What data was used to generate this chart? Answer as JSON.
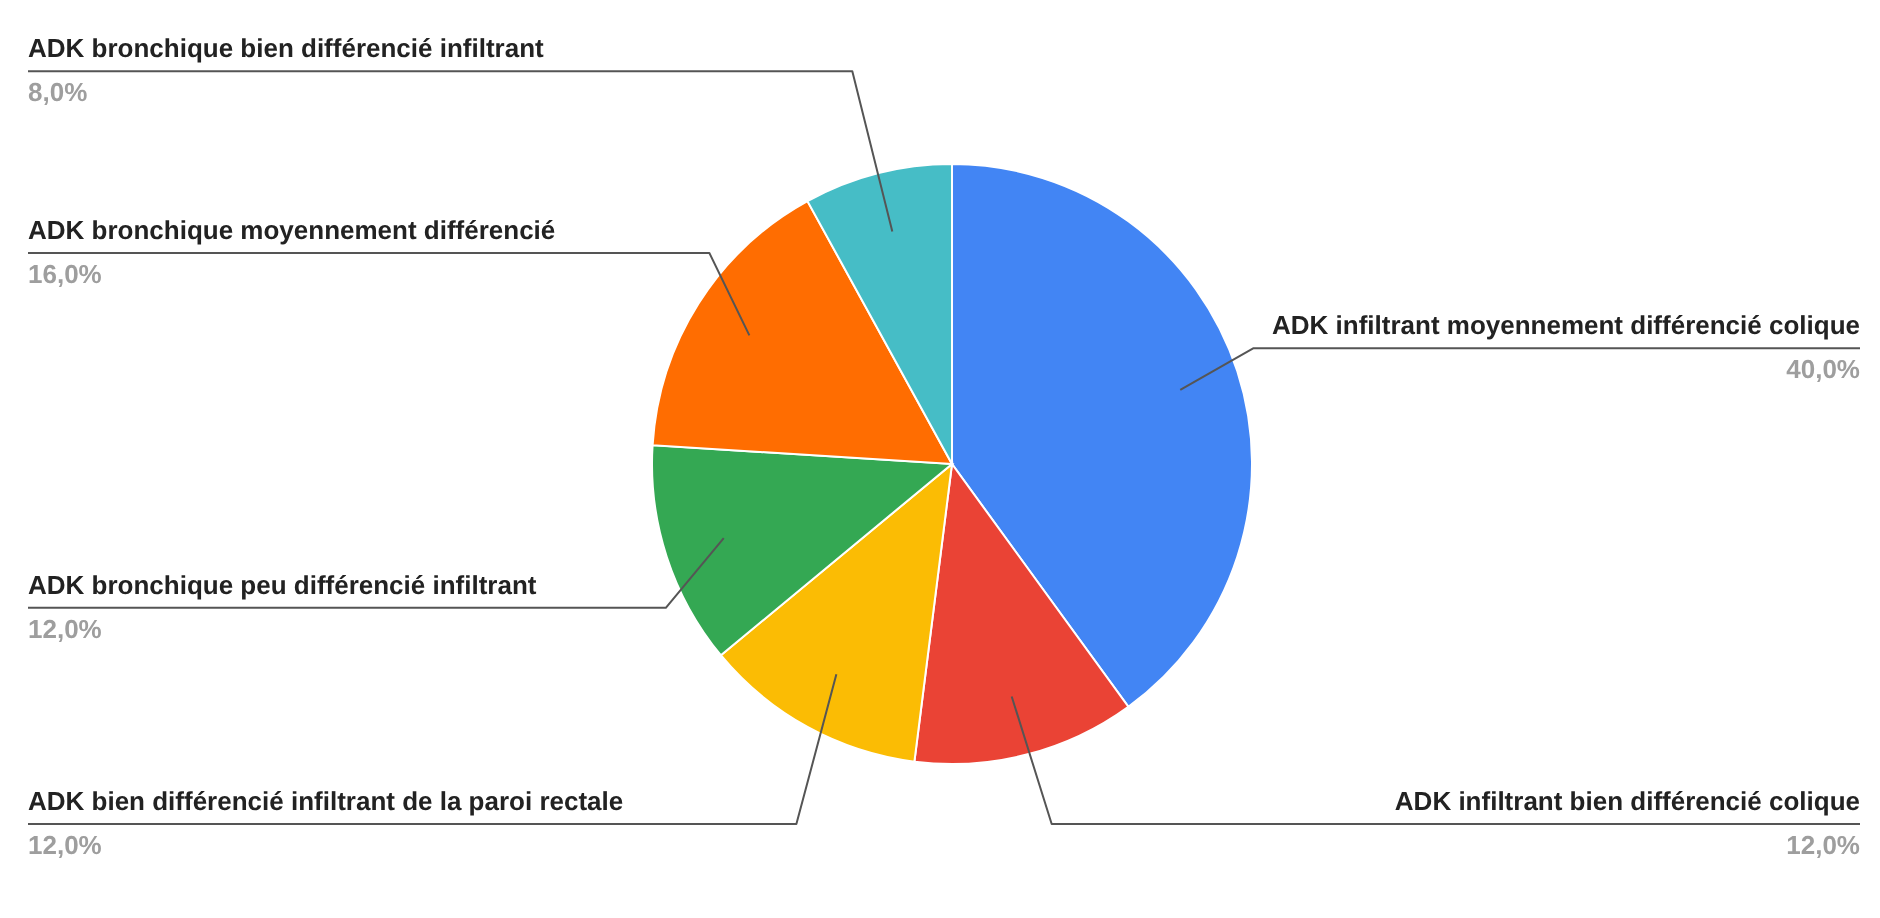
{
  "chart_data": {
    "type": "pie",
    "categories": [
      "ADK infiltrant moyennement différencié colique",
      "ADK infiltrant bien différencié colique",
      "ADK bien différencié infiltrant de la paroi rectale",
      "ADK bronchique peu différencié infiltrant",
      "ADK bronchique moyennement différencié",
      "ADK bronchique bien différencié infiltrant"
    ],
    "values": [
      40,
      12,
      12,
      12,
      16,
      8
    ],
    "colors": [
      "#4285f4",
      "#ea4335",
      "#fbbc04",
      "#34a853",
      "#ff6d01",
      "#46bdc6"
    ],
    "value_labels": [
      "40,0%",
      "12,0%",
      "12,0%",
      "12,0%",
      "16,0%",
      "8,0%"
    ]
  }
}
